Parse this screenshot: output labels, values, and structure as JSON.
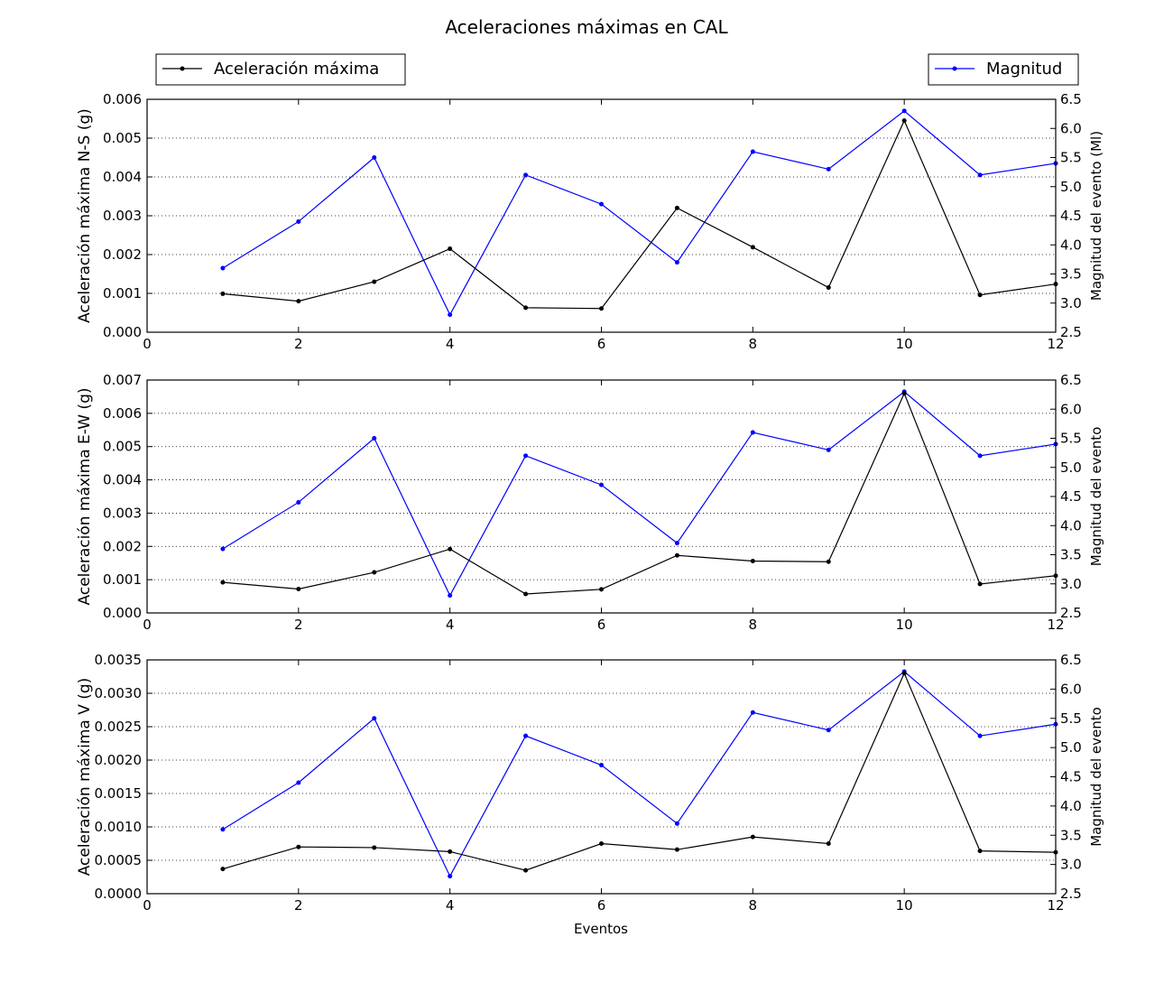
{
  "chart_data": {
    "title": "Aceleraciones máximas en CAL",
    "type": "line",
    "legend": [
      {
        "label": "Aceleración máxima",
        "color": "#000000",
        "placement": "top-left"
      },
      {
        "label": "Magnitud",
        "color": "#0000ff",
        "placement": "top-right"
      }
    ],
    "x": [
      1,
      2,
      3,
      4,
      5,
      6,
      7,
      8,
      9,
      10,
      11,
      12
    ],
    "xlabel": "Eventos",
    "xlim": [
      0,
      12
    ],
    "xticks": [
      "0",
      "2",
      "4",
      "6",
      "8",
      "10",
      "12"
    ],
    "grid": "horizontal dotted",
    "magnitud": [
      3.6,
      4.4,
      5.5,
      2.8,
      5.2,
      4.7,
      3.7,
      5.6,
      5.3,
      6.3,
      5.2,
      5.4
    ],
    "panels": [
      {
        "ylabel": "Aceleración máxima N-S (g)",
        "ylabel_right": "Magnitud del evento (Ml)",
        "ylim": [
          0,
          0.006
        ],
        "yticks": [
          "0.000",
          "0.001",
          "0.002",
          "0.003",
          "0.004",
          "0.005",
          "0.006"
        ],
        "ylim_right": [
          2.5,
          6.5
        ],
        "yticks_right": [
          "2.5",
          "3.0",
          "3.5",
          "4.0",
          "4.5",
          "5.0",
          "5.5",
          "6.0",
          "6.5"
        ],
        "values": [
          0.00099,
          0.0008,
          0.0013,
          0.00215,
          0.00063,
          0.00061,
          0.0032,
          0.00219,
          0.00115,
          0.00545,
          0.00096,
          0.00124
        ]
      },
      {
        "ylabel": "Aceleración máxima E-W (g)",
        "ylabel_right": "Magnitud del evento",
        "ylim": [
          0,
          0.007
        ],
        "yticks": [
          "0.000",
          "0.001",
          "0.002",
          "0.003",
          "0.004",
          "0.005",
          "0.006",
          "0.007"
        ],
        "ylim_right": [
          2.5,
          6.5
        ],
        "yticks_right": [
          "2.5",
          "3.0",
          "3.5",
          "4.0",
          "4.5",
          "5.0",
          "5.5",
          "6.0",
          "6.5"
        ],
        "values": [
          0.00092,
          0.00072,
          0.00122,
          0.00192,
          0.00057,
          0.00071,
          0.00173,
          0.00156,
          0.00154,
          0.0066,
          0.00087,
          0.00112
        ]
      },
      {
        "ylabel": "Aceleración máxima V (g)",
        "ylabel_right": "Magnitud del evento",
        "ylim": [
          0,
          0.0035
        ],
        "yticks": [
          "0.0000",
          "0.0005",
          "0.0010",
          "0.0015",
          "0.0020",
          "0.0025",
          "0.0030",
          "0.0035"
        ],
        "ylim_right": [
          2.5,
          6.5
        ],
        "yticks_right": [
          "2.5",
          "3.0",
          "3.5",
          "4.0",
          "4.5",
          "5.0",
          "5.5",
          "6.0",
          "6.5"
        ],
        "values": [
          0.00037,
          0.0007,
          0.00069,
          0.00063,
          0.00035,
          0.00075,
          0.00066,
          0.00085,
          0.00075,
          0.0033,
          0.00064,
          0.00062
        ]
      }
    ]
  }
}
